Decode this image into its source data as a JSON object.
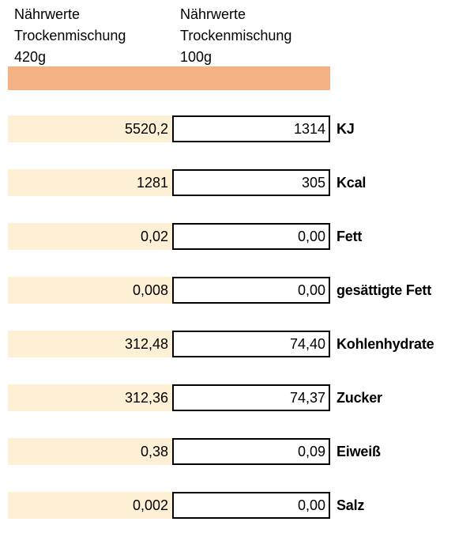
{
  "header": {
    "left": {
      "line1": "Nährwerte",
      "line2": "Trockenmischung",
      "line3": "420g"
    },
    "right": {
      "line1": "Nährwerte",
      "line2": "Trockenmischung",
      "line3": "100g"
    }
  },
  "colors": {
    "header_bar": "#f4b183",
    "left_cell_fill": "#fdf0d5"
  },
  "rows": [
    {
      "total": "5520,2",
      "per100": "1314",
      "label": "KJ"
    },
    {
      "total": "1281",
      "per100": "305",
      "label": "Kcal"
    },
    {
      "total": "0,02",
      "per100": "0,00",
      "label": "Fett"
    },
    {
      "total": "0,008",
      "per100": "0,00",
      "label": "gesättigte Fett"
    },
    {
      "total": "312,48",
      "per100": "74,40",
      "label": "Kohlenhydrate"
    },
    {
      "total": "312,36",
      "per100": "74,37",
      "label": "Zucker"
    },
    {
      "total": "0,38",
      "per100": "0,09",
      "label": "Eiweiß"
    },
    {
      "total": "0,002",
      "per100": "0,00",
      "label": "Salz"
    }
  ]
}
